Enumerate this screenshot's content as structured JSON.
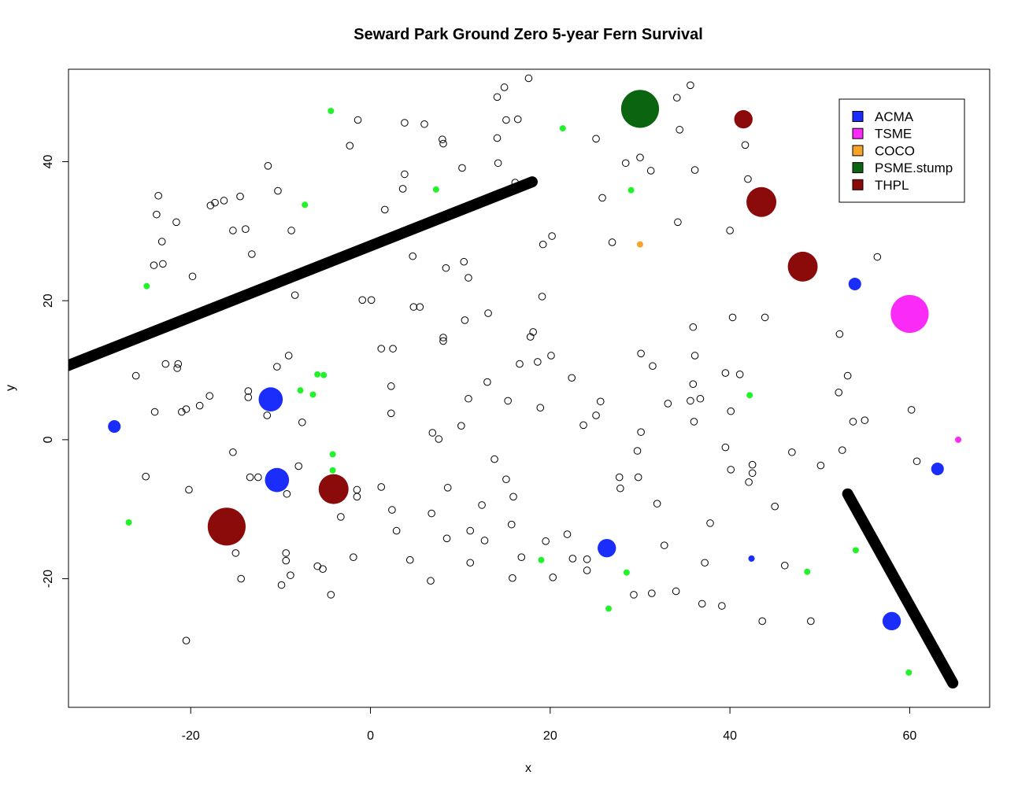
{
  "chart_data": {
    "type": "scatter",
    "title": "Seward Park Ground Zero 5-year Fern Survival",
    "xlabel": "x",
    "ylabel": "y",
    "xlim": [
      -33.6,
      68.9
    ],
    "ylim": [
      -38.5,
      53.3
    ],
    "xticks": [
      -20,
      0,
      20,
      40,
      60
    ],
    "yticks": [
      -20,
      0,
      20,
      40
    ],
    "grid": false,
    "legend_position": "top-right",
    "legend": [
      {
        "label": "ACMA",
        "color": "#1a2dfa"
      },
      {
        "label": "TSME",
        "color": "#fb2bf7"
      },
      {
        "label": "COCO",
        "color": "#f7a229"
      },
      {
        "label": "PSME.stump",
        "color": "#0a6410"
      },
      {
        "label": "THPL",
        "color": "#8b0a0a"
      }
    ],
    "lines": [
      {
        "x": [
          -34,
          18
        ],
        "y": [
          10.5,
          37.1
        ]
      },
      {
        "x": [
          53.1,
          64.8
        ],
        "y": [
          -7.8,
          -35
        ]
      }
    ],
    "trees": [
      {
        "species": "ACMA",
        "x": -28.5,
        "y": 1.9,
        "size": 1.1
      },
      {
        "species": "ACMA",
        "x": -11.1,
        "y": 5.8,
        "size": 2.1
      },
      {
        "species": "ACMA",
        "x": -10.4,
        "y": -5.8,
        "size": 2.1
      },
      {
        "species": "ACMA",
        "x": 26.3,
        "y": -15.6,
        "size": 1.6
      },
      {
        "species": "ACMA",
        "x": 53.9,
        "y": 22.4,
        "size": 1.1
      },
      {
        "species": "ACMA",
        "x": 58.0,
        "y": -26.1,
        "size": 1.6
      },
      {
        "species": "ACMA",
        "x": 63.1,
        "y": -4.2,
        "size": 1.1
      },
      {
        "species": "ACMA",
        "x": 42.4,
        "y": -17.1,
        "size": 0.55
      },
      {
        "species": "TSME",
        "x": 60.0,
        "y": 18.1,
        "size": 3.3
      },
      {
        "species": "TSME",
        "x": 65.4,
        "y": 0.0,
        "size": 0.55
      },
      {
        "species": "COCO",
        "x": 30.0,
        "y": 28.1,
        "size": 0.55
      },
      {
        "species": "PSME.stump",
        "x": 30.0,
        "y": 47.6,
        "size": 3.3
      },
      {
        "species": "THPL",
        "x": -16.0,
        "y": -12.5,
        "size": 3.3
      },
      {
        "species": "THPL",
        "x": -4.1,
        "y": -7.1,
        "size": 2.6
      },
      {
        "species": "THPL",
        "x": 41.5,
        "y": 46.1,
        "size": 1.6
      },
      {
        "species": "THPL",
        "x": 43.5,
        "y": 34.2,
        "size": 2.6
      },
      {
        "species": "THPL",
        "x": 48.1,
        "y": 24.9,
        "size": 2.6
      }
    ],
    "ferns_alive": [
      [
        -4.4,
        47.3
      ],
      [
        21.4,
        44.8
      ],
      [
        -7.3,
        33.8
      ],
      [
        7.3,
        36.0
      ],
      [
        29.0,
        35.9
      ],
      [
        -24.9,
        22.1
      ],
      [
        -5.9,
        9.4
      ],
      [
        -5.2,
        9.3
      ],
      [
        -7.8,
        7.1
      ],
      [
        -6.4,
        6.5
      ],
      [
        42.2,
        6.4
      ],
      [
        -4.2,
        -2.1
      ],
      [
        -4.2,
        -4.4
      ],
      [
        -26.9,
        -11.9
      ],
      [
        19.0,
        -17.3
      ],
      [
        28.5,
        -19.1
      ],
      [
        26.5,
        -24.3
      ],
      [
        48.6,
        -19.0
      ],
      [
        54.0,
        -15.9
      ],
      [
        59.9,
        -33.5
      ]
    ],
    "ferns_dead": [
      [
        17.6,
        52.0
      ],
      [
        14.9,
        50.7
      ],
      [
        35.6,
        51.0
      ],
      [
        14.1,
        49.3
      ],
      [
        34.1,
        49.2
      ],
      [
        -1.4,
        46.0
      ],
      [
        15.1,
        46.0
      ],
      [
        16.4,
        46.1
      ],
      [
        3.8,
        45.6
      ],
      [
        6.0,
        45.4
      ],
      [
        34.4,
        44.6
      ],
      [
        8.0,
        43.2
      ],
      [
        8.1,
        42.6
      ],
      [
        25.1,
        43.3
      ],
      [
        -2.3,
        42.3
      ],
      [
        14.1,
        43.4
      ],
      [
        41.7,
        42.4
      ],
      [
        30.0,
        40.6
      ],
      [
        28.4,
        39.8
      ],
      [
        14.2,
        39.8
      ],
      [
        -11.4,
        39.4
      ],
      [
        10.2,
        39.1
      ],
      [
        31.2,
        38.7
      ],
      [
        36.1,
        38.8
      ],
      [
        3.8,
        38.2
      ],
      [
        42.0,
        37.5
      ],
      [
        16.1,
        37.0
      ],
      [
        -10.3,
        35.8
      ],
      [
        3.6,
        36.1
      ],
      [
        -23.6,
        35.1
      ],
      [
        -14.5,
        35.0
      ],
      [
        25.8,
        34.8
      ],
      [
        -16.3,
        34.4
      ],
      [
        -17.8,
        33.7
      ],
      [
        -17.3,
        34.1
      ],
      [
        1.6,
        33.1
      ],
      [
        -23.8,
        32.4
      ],
      [
        -21.6,
        31.3
      ],
      [
        34.2,
        31.3
      ],
      [
        -13.9,
        30.3
      ],
      [
        -15.3,
        30.1
      ],
      [
        -8.8,
        30.1
      ],
      [
        40.0,
        30.1
      ],
      [
        20.2,
        29.3
      ],
      [
        19.2,
        28.1
      ],
      [
        26.9,
        28.4
      ],
      [
        -23.2,
        28.5
      ],
      [
        -13.2,
        26.7
      ],
      [
        4.7,
        26.4
      ],
      [
        56.4,
        26.3
      ],
      [
        10.4,
        25.6
      ],
      [
        -23.1,
        25.3
      ],
      [
        -24.1,
        25.1
      ],
      [
        8.4,
        24.7
      ],
      [
        -19.8,
        23.5
      ],
      [
        10.9,
        23.3
      ],
      [
        -8.4,
        20.8
      ],
      [
        19.1,
        20.6
      ],
      [
        -0.9,
        20.1
      ],
      [
        0.1,
        20.1
      ],
      [
        4.8,
        19.1
      ],
      [
        5.5,
        19.1
      ],
      [
        13.1,
        18.2
      ],
      [
        40.3,
        17.6
      ],
      [
        43.9,
        17.6
      ],
      [
        10.5,
        17.2
      ],
      [
        35.9,
        16.2
      ],
      [
        18.1,
        15.5
      ],
      [
        52.2,
        15.2
      ],
      [
        17.8,
        14.8
      ],
      [
        8.1,
        14.7
      ],
      [
        8.1,
        14.2
      ],
      [
        1.2,
        13.1
      ],
      [
        2.5,
        13.1
      ],
      [
        30.1,
        12.4
      ],
      [
        -9.1,
        12.1
      ],
      [
        20.1,
        12.1
      ],
      [
        36.1,
        12.1
      ],
      [
        -22.8,
        10.9
      ],
      [
        -21.4,
        10.9
      ],
      [
        -21.5,
        10.3
      ],
      [
        -10.4,
        10.5
      ],
      [
        16.6,
        10.9
      ],
      [
        18.6,
        11.2
      ],
      [
        31.4,
        10.6
      ],
      [
        39.5,
        9.6
      ],
      [
        41.1,
        9.4
      ],
      [
        53.1,
        9.2
      ],
      [
        -26.1,
        9.2
      ],
      [
        22.4,
        8.9
      ],
      [
        13.0,
        8.3
      ],
      [
        35.9,
        8.0
      ],
      [
        2.3,
        7.7
      ],
      [
        -13.6,
        7.0
      ],
      [
        52.1,
        6.8
      ],
      [
        -17.9,
        6.3
      ],
      [
        -13.6,
        6.1
      ],
      [
        10.9,
        5.9
      ],
      [
        36.7,
        5.9
      ],
      [
        15.3,
        5.6
      ],
      [
        25.6,
        5.5
      ],
      [
        35.6,
        5.6
      ],
      [
        33.1,
        5.2
      ],
      [
        -19.0,
        4.9
      ],
      [
        18.9,
        4.6
      ],
      [
        -20.5,
        4.4
      ],
      [
        -21.0,
        4.0
      ],
      [
        -24.0,
        4.0
      ],
      [
        40.1,
        4.1
      ],
      [
        60.2,
        4.3
      ],
      [
        2.3,
        3.8
      ],
      [
        -11.5,
        3.5
      ],
      [
        25.1,
        3.5
      ],
      [
        -7.6,
        2.5
      ],
      [
        36.0,
        2.6
      ],
      [
        53.7,
        2.6
      ],
      [
        55.0,
        2.8
      ],
      [
        23.7,
        2.1
      ],
      [
        10.1,
        2.0
      ],
      [
        6.9,
        1.0
      ],
      [
        30.1,
        1.1
      ],
      [
        7.6,
        0.1
      ],
      [
        39.5,
        -1.1
      ],
      [
        29.7,
        -1.6
      ],
      [
        46.9,
        -1.8
      ],
      [
        52.5,
        -1.5
      ],
      [
        -15.3,
        -1.8
      ],
      [
        13.8,
        -2.8
      ],
      [
        60.8,
        -3.1
      ],
      [
        42.5,
        -3.6
      ],
      [
        50.1,
        -3.7
      ],
      [
        -8.0,
        -3.8
      ],
      [
        40.1,
        -4.3
      ],
      [
        42.5,
        -4.8
      ],
      [
        -25.0,
        -5.3
      ],
      [
        -13.4,
        -5.4
      ],
      [
        -12.5,
        -5.4
      ],
      [
        15.1,
        -5.7
      ],
      [
        27.7,
        -5.4
      ],
      [
        29.8,
        -5.4
      ],
      [
        42.1,
        -6.1
      ],
      [
        -20.2,
        -7.2
      ],
      [
        8.6,
        -6.9
      ],
      [
        1.2,
        -6.8
      ],
      [
        -1.5,
        -7.2
      ],
      [
        27.8,
        -7.0
      ],
      [
        -9.3,
        -7.8
      ],
      [
        -1.5,
        -8.2
      ],
      [
        15.9,
        -8.2
      ],
      [
        31.9,
        -9.2
      ],
      [
        12.4,
        -9.4
      ],
      [
        45.0,
        -9.6
      ],
      [
        2.4,
        -10.1
      ],
      [
        6.8,
        -10.6
      ],
      [
        -3.3,
        -11.1
      ],
      [
        15.7,
        -12.2
      ],
      [
        37.8,
        -12.0
      ],
      [
        2.9,
        -13.1
      ],
      [
        11.1,
        -13.1
      ],
      [
        21.9,
        -13.6
      ],
      [
        8.5,
        -14.2
      ],
      [
        12.7,
        -14.5
      ],
      [
        19.5,
        -14.6
      ],
      [
        32.7,
        -15.2
      ],
      [
        -15.0,
        -16.3
      ],
      [
        -9.4,
        -16.3
      ],
      [
        -1.9,
        -16.9
      ],
      [
        16.8,
        -16.9
      ],
      [
        4.4,
        -17.3
      ],
      [
        22.5,
        -17.1
      ],
      [
        24.1,
        -17.2
      ],
      [
        -9.4,
        -17.4
      ],
      [
        11.1,
        -17.7
      ],
      [
        37.2,
        -17.7
      ],
      [
        -5.9,
        -18.2
      ],
      [
        -5.3,
        -18.6
      ],
      [
        46.1,
        -18.1
      ],
      [
        24.1,
        -18.8
      ],
      [
        -8.9,
        -19.5
      ],
      [
        20.3,
        -19.8
      ],
      [
        15.8,
        -19.9
      ],
      [
        -14.4,
        -20.0
      ],
      [
        6.7,
        -20.3
      ],
      [
        -9.9,
        -20.9
      ],
      [
        34.0,
        -21.8
      ],
      [
        31.3,
        -22.1
      ],
      [
        29.3,
        -22.3
      ],
      [
        -4.4,
        -22.3
      ],
      [
        36.9,
        -23.6
      ],
      [
        39.1,
        -23.9
      ],
      [
        43.6,
        -26.1
      ],
      [
        49.0,
        -26.1
      ],
      [
        -20.5,
        -28.9
      ]
    ]
  }
}
